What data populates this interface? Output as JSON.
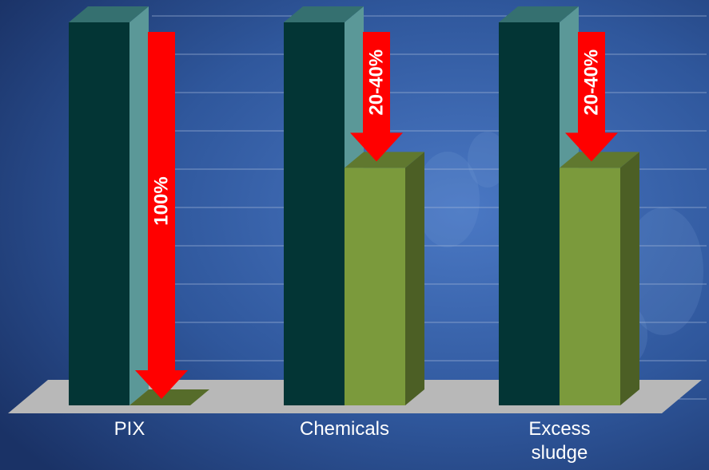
{
  "chart_data": {
    "type": "bar",
    "categories": [
      "PIX",
      "Chemicals",
      "Excess\nsludge"
    ],
    "series": [
      {
        "values": [
          100,
          100,
          100
        ],
        "color": "#033535"
      },
      {
        "values": [
          0,
          62,
          62
        ],
        "color": "#7b9a3c"
      }
    ],
    "reductions": [
      "100%",
      "20-40%",
      "20-40%"
    ],
    "ylim": [
      0,
      100
    ],
    "grid": true,
    "bar_3d": true,
    "arrow_color": "#ff0000",
    "background": "#2b4b8c"
  }
}
